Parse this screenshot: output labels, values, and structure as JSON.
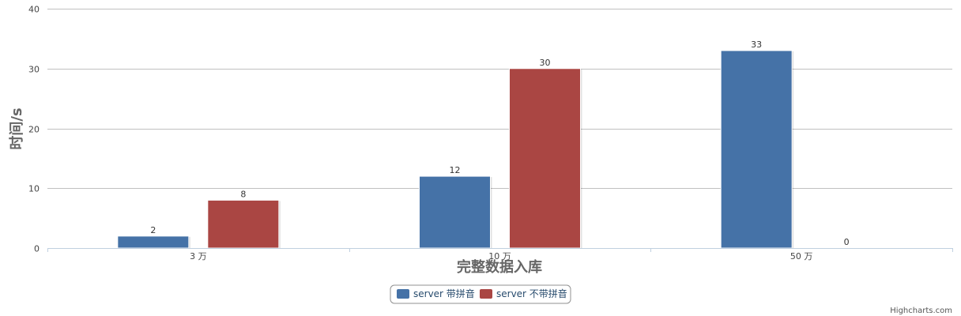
{
  "chart_data": {
    "type": "bar",
    "title": "",
    "xlabel": "完整数据入库",
    "ylabel": "时间/s",
    "categories": [
      "3 万",
      "10 万",
      "50 万"
    ],
    "ylim": [
      0,
      40
    ],
    "yticks": [
      0,
      10,
      20,
      30,
      40
    ],
    "grid": true,
    "legend_position": "bottom-center",
    "series": [
      {
        "name": "server 带拼音",
        "values": [
          2,
          12,
          33
        ],
        "color": "#4572a7"
      },
      {
        "name": "server 不带拼音",
        "values": [
          8,
          30,
          0
        ],
        "color": "#aa4643"
      }
    ]
  },
  "credits": "Highcharts.com"
}
